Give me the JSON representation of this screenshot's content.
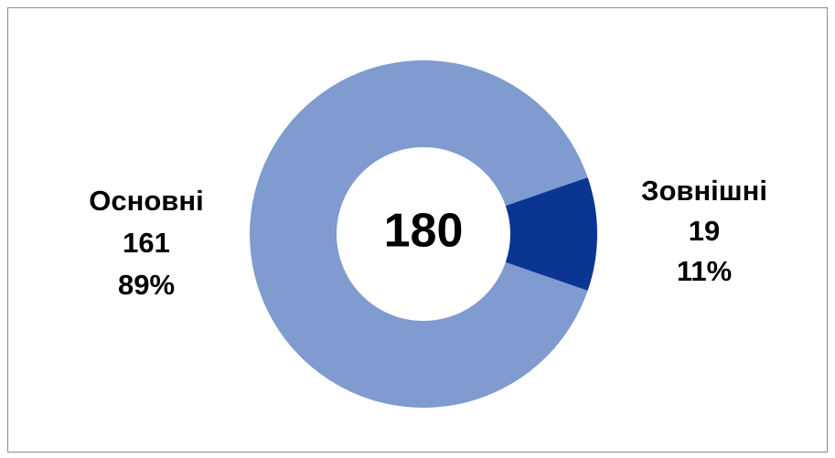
{
  "chart_data": {
    "type": "donut",
    "total": 180,
    "categories": [
      "Основні",
      "Зовнішні"
    ],
    "values": [
      161,
      19
    ],
    "percentage_labels": [
      "89%",
      "11%"
    ],
    "colors": [
      "#7f9bcf",
      "#0a3593"
    ]
  }
}
